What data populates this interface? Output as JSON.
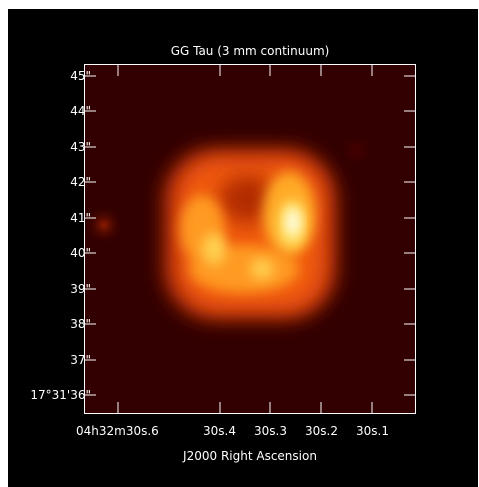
{
  "plot": {
    "title": "GG Tau (3 mm continuum)",
    "x_axis_title": "J2000 Right Ascension",
    "y_ticks": [
      "45\"",
      "44\"",
      "43\"",
      "42\"",
      "41\"",
      "40\"",
      "39\"",
      "38\"",
      "37\"",
      "17°31'36\""
    ],
    "x_ticks": [
      "04h32m30s.6",
      "30s.4",
      "30s.3",
      "30s.2",
      "30s.1"
    ],
    "colors": {
      "background": "#320000",
      "frame": "#000000",
      "axis": "#ffffff",
      "colormap": [
        "#320000",
        "#8c1a00",
        "#e0450a",
        "#ff8a18",
        "#ffc840",
        "#ffffd0"
      ]
    }
  }
}
